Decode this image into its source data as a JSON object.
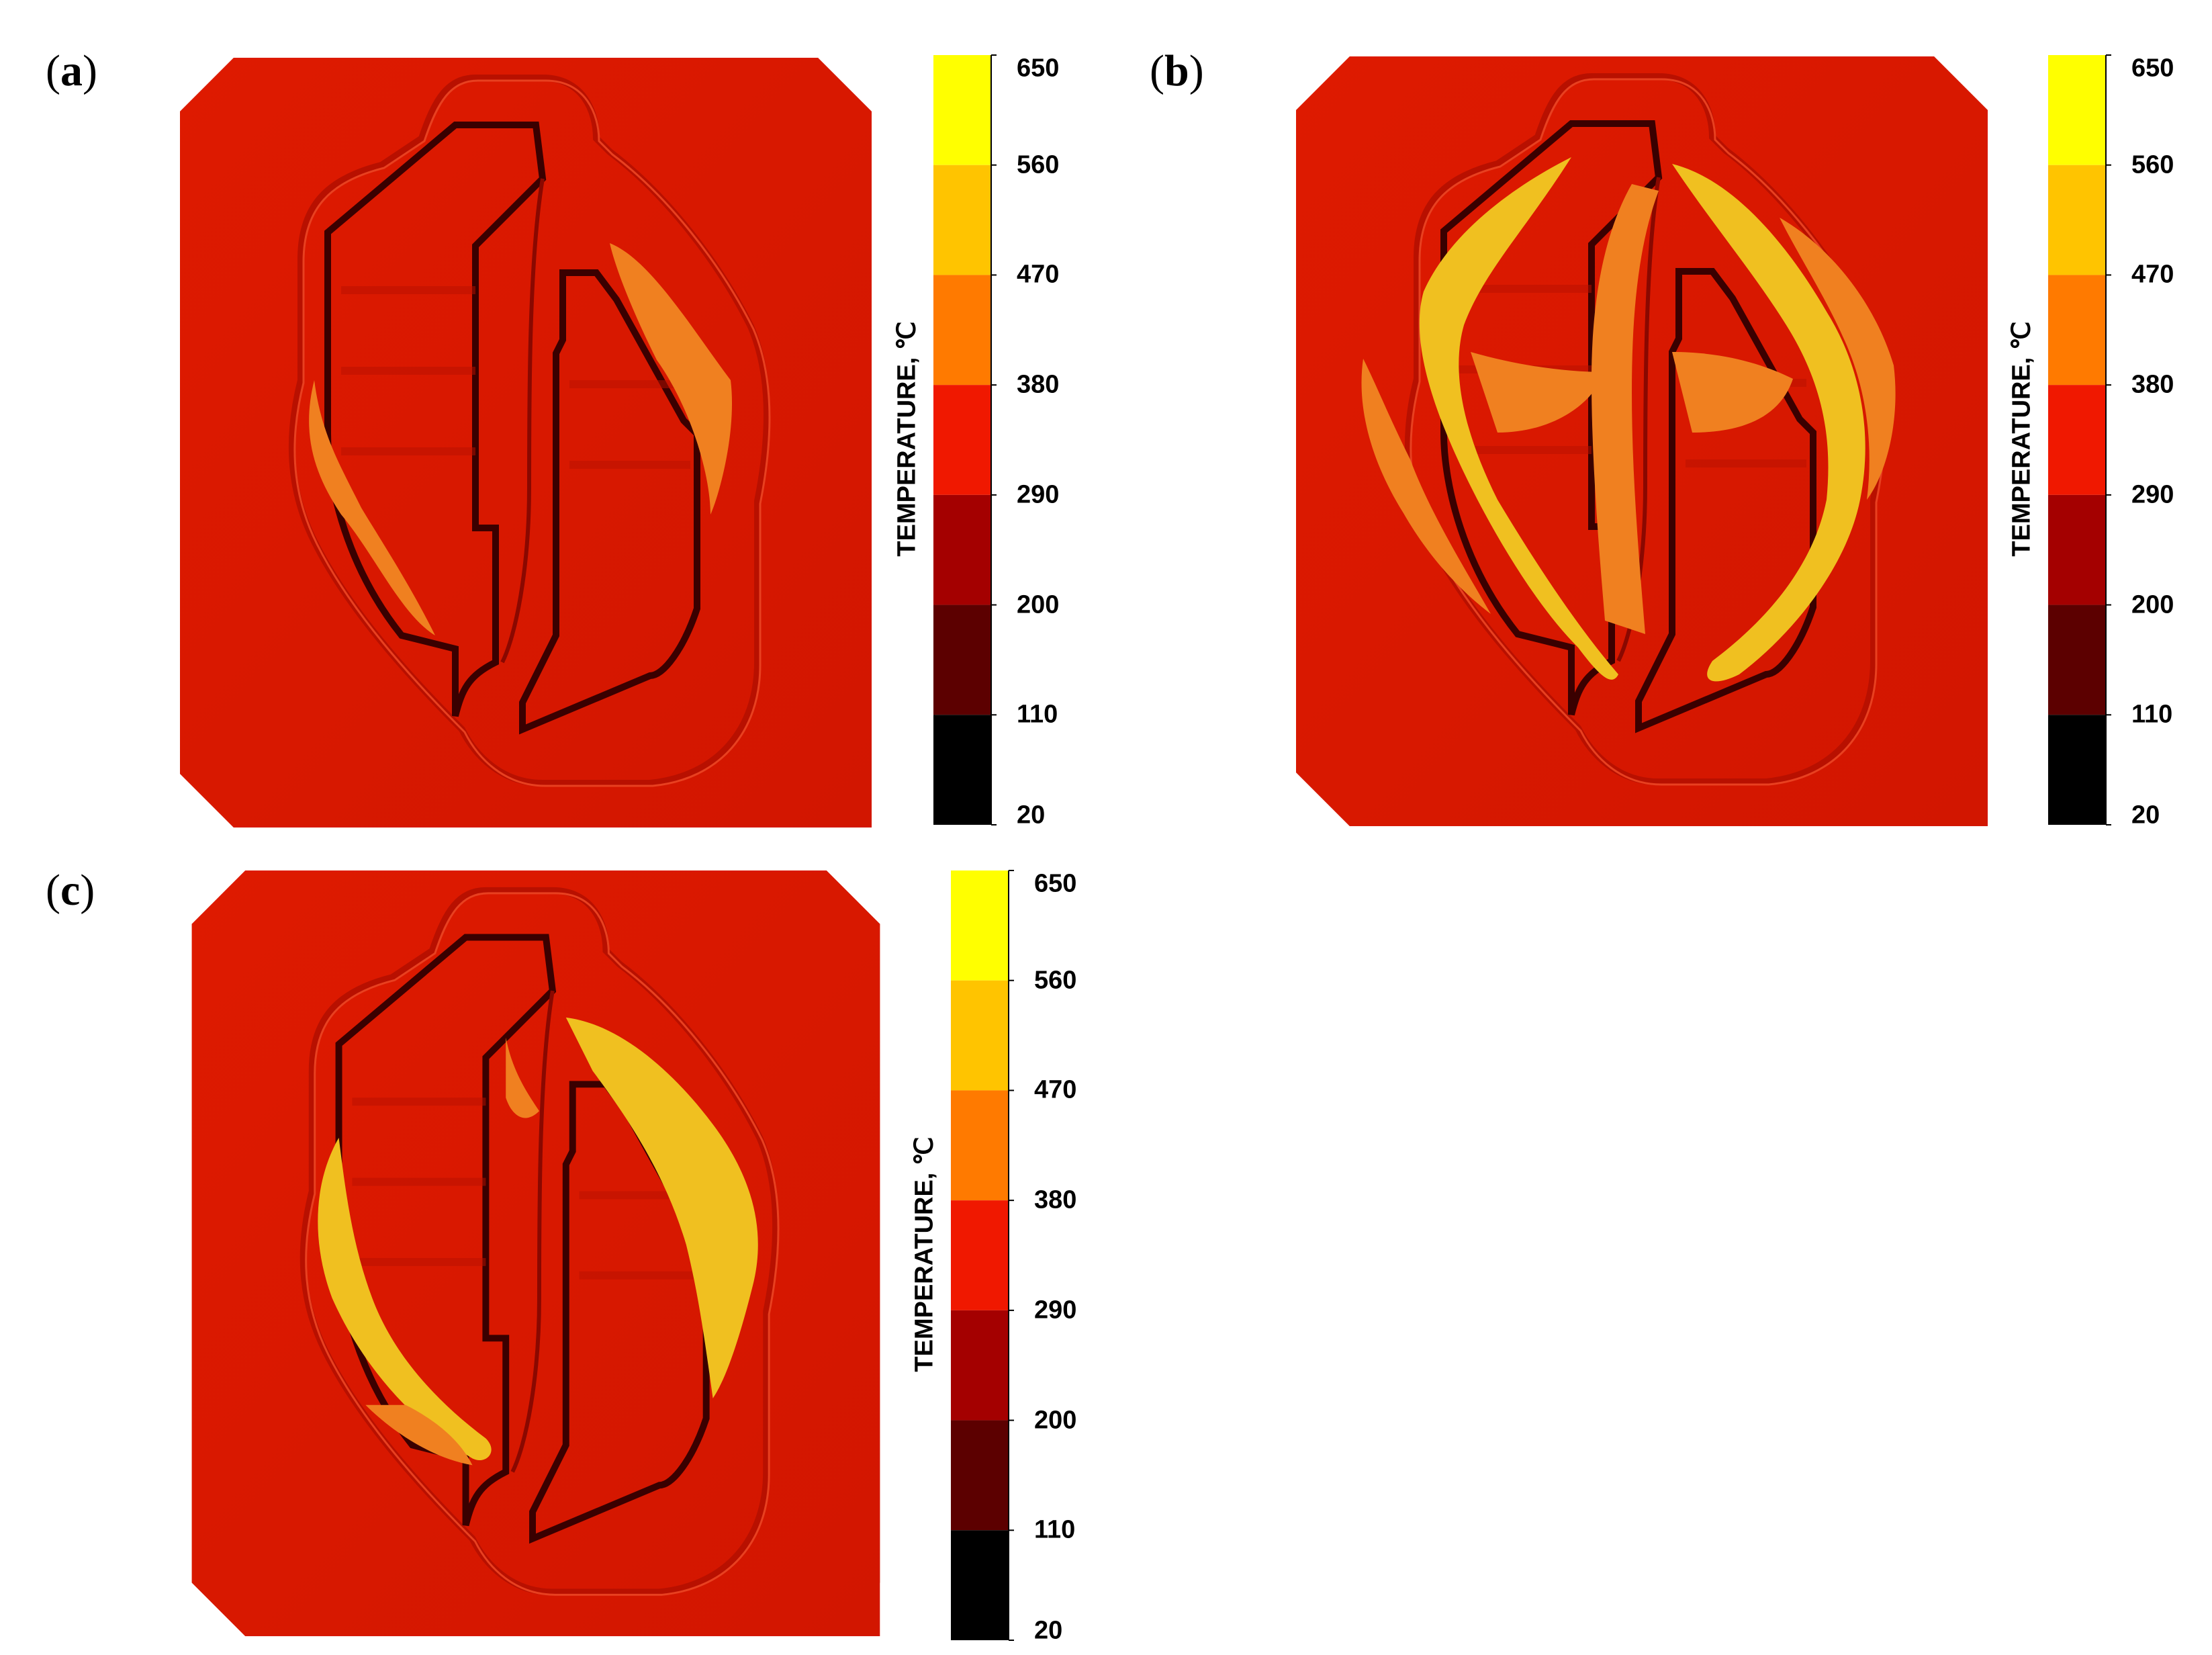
{
  "panels": [
    {
      "id": "a",
      "label_open": "(",
      "label_letter": "a",
      "label_close": ")"
    },
    {
      "id": "b",
      "label_open": "(",
      "label_letter": "b",
      "label_close": ")"
    },
    {
      "id": "c",
      "label_open": "(",
      "label_letter": "c",
      "label_close": ")"
    }
  ],
  "colorbar": {
    "title": "TEMPERATURE, ℃",
    "ticks": [
      "650",
      "560",
      "470",
      "380",
      "290",
      "200",
      "110",
      "20"
    ],
    "band_colors": [
      "#ffff00",
      "#ffc400",
      "#ff7a00",
      "#f01800",
      "#a40000",
      "#5c0000",
      "#000000"
    ]
  },
  "colors": {
    "plate": "#dc1800",
    "plate_dark": "#b01000",
    "groove": "#3a0000",
    "hot_orange": "#f08020",
    "hot_yellow": "#f0c020",
    "hot_light": "#f5e030"
  }
}
